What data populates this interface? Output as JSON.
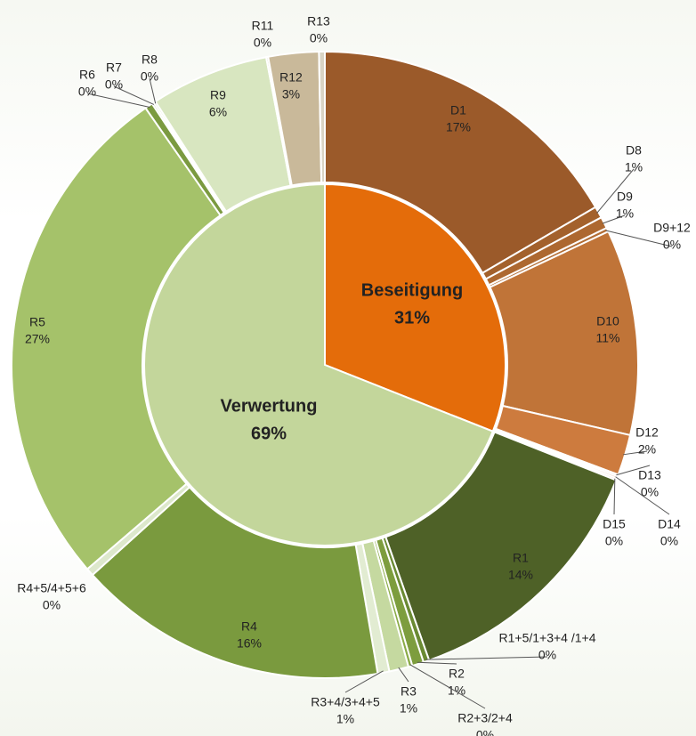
{
  "chart_data": {
    "type": "sunburst",
    "inner": {
      "categories": [
        "Beseitigung",
        "Verwertung"
      ],
      "values": [
        31,
        69
      ],
      "value_labels": [
        "31%",
        "69%"
      ],
      "colors": [
        "#e46c0a",
        "#c3d69b"
      ]
    },
    "outer": {
      "categories": [
        "D1",
        "D8",
        "D9",
        "D9+12",
        "D10",
        "D12",
        "D13",
        "D14",
        "D15",
        "R1",
        "R1+5/1+3+4 /1+4",
        "R2",
        "R2+3/2+4",
        "R3",
        "R3+4/3+4+5",
        "R4",
        "R4+5/4+5+6",
        "R5",
        "R6",
        "R7",
        "R8",
        "R9",
        "R11",
        "R12",
        "R13"
      ],
      "values": [
        16.6,
        0.6,
        0.6,
        0.2,
        10.6,
        2.1,
        0.1,
        0.1,
        0.1,
        13.6,
        0.3,
        0.6,
        0.2,
        1.0,
        0.6,
        16.0,
        0.4,
        26.6,
        0.4,
        0.1,
        0.1,
        6.1,
        0.1,
        2.6,
        0.3
      ],
      "value_labels": [
        "17%",
        "1%",
        "1%",
        "0%",
        "11%",
        "2%",
        "0%",
        "0%",
        "0%",
        "14%",
        "0%",
        "1%",
        "0%",
        "1%",
        "1%",
        "16%",
        "0%",
        "27%",
        "0%",
        "0%",
        "0%",
        "6%",
        "0%",
        "3%",
        "0%"
      ],
      "colors": [
        "#9b5a2a",
        "#a3612c",
        "#ad6830",
        "#b36d35",
        "#c07438",
        "#cd7b3e",
        "#d48048",
        "#d48048",
        "#d48048",
        "#4e6127",
        "#6a8a33",
        "#7d9d3e",
        "#8aab47",
        "#c5d9a0",
        "#e2ecd2",
        "#7a9a3e",
        "#dde8cc",
        "#a5c26a",
        "#7b9a40",
        "#8fad50",
        "#a3bd70",
        "#d8e6c0",
        "#c9b99a",
        "#c9b99a",
        "#d9d4c4"
      ]
    }
  }
}
